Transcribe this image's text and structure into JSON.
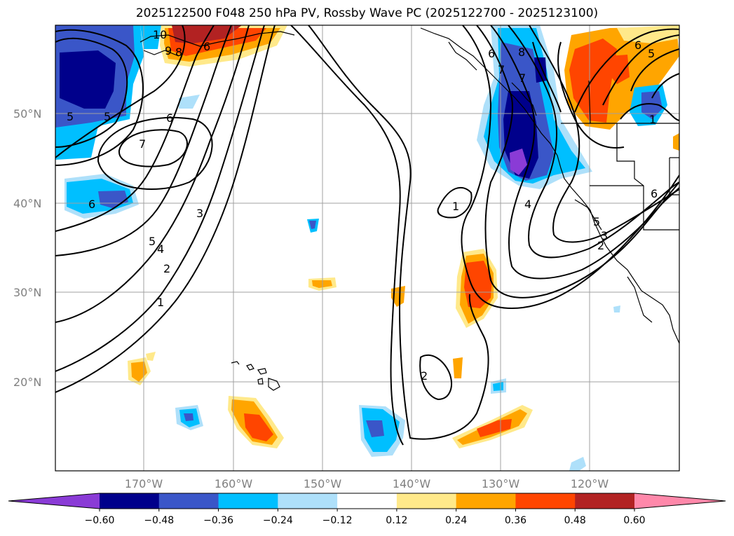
{
  "title": "2025122500 F048 250 hPa PV, Rossby Wave PC (2025122700 - 2025123100)",
  "lat_labels": [
    "50°N",
    "40°N",
    "30°N",
    "20°N"
  ],
  "lon_labels": [
    "170°W",
    "160°W",
    "150°W",
    "140°W",
    "130°W",
    "120°W"
  ],
  "colorbar": {
    "ticks": [
      "−0.60",
      "−0.48",
      "−0.36",
      "−0.24",
      "−0.12",
      "0.12",
      "0.24",
      "0.36",
      "0.48",
      "0.60"
    ],
    "colors": [
      "#8a3bd6",
      "#00008b",
      "#3a56c8",
      "#00bfff",
      "#aee0fa",
      "#ffffff",
      "#ffe98a",
      "#ffa500",
      "#ff4500",
      "#b22222",
      "#ff88aa"
    ]
  },
  "contour_labels": [
    "5",
    "5",
    "6",
    "6",
    "7",
    "6",
    "5",
    "4",
    "3",
    "2",
    "1",
    "9",
    "8",
    "6",
    "7",
    "8",
    "7",
    "6",
    "5",
    "1",
    "4",
    "5",
    "3",
    "2",
    "6",
    "1",
    "2",
    "10"
  ]
}
